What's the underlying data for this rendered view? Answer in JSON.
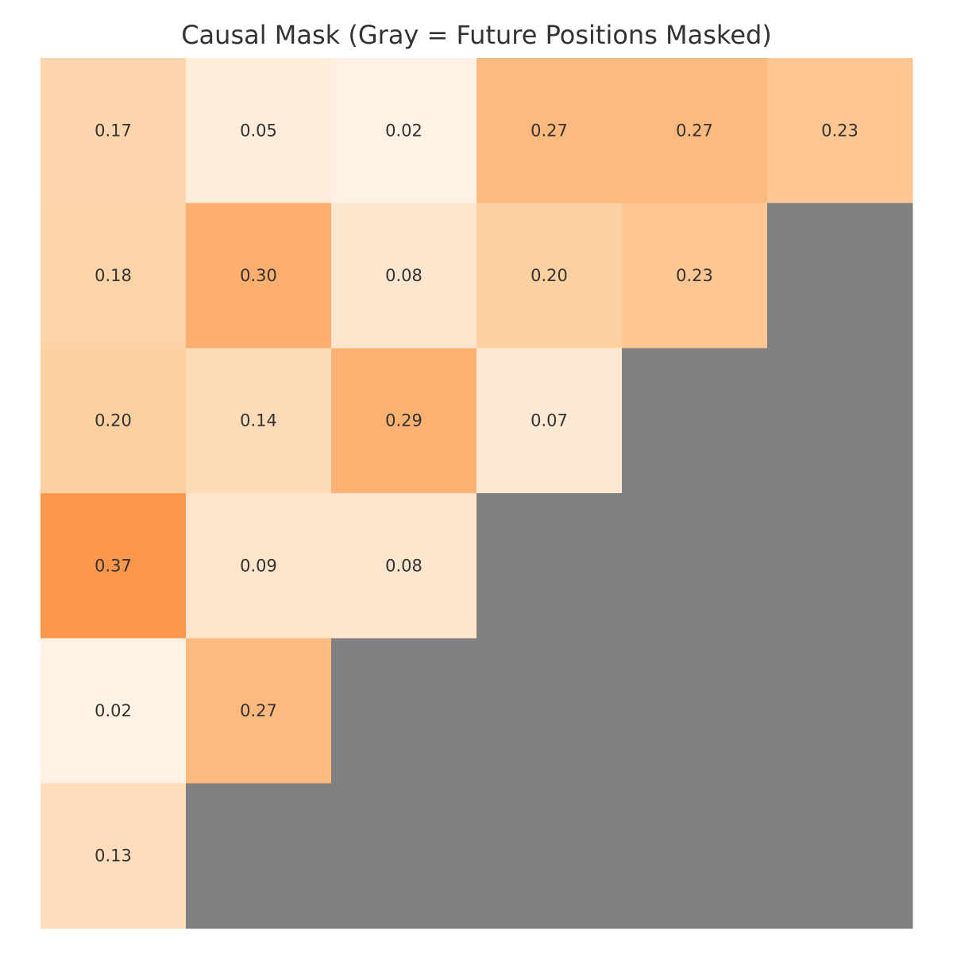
{
  "chart_data": {
    "type": "heatmap",
    "title": "Causal Mask (Gray = Future Positions Masked)",
    "xlabel": "",
    "ylabel": "",
    "rows": 6,
    "cols": 6,
    "values": [
      [
        0.17,
        0.05,
        0.02,
        0.27,
        0.27,
        0.23
      ],
      [
        0.18,
        0.3,
        0.08,
        0.2,
        0.23,
        null
      ],
      [
        0.2,
        0.14,
        0.29,
        0.07,
        null,
        null
      ],
      [
        0.37,
        0.09,
        0.08,
        null,
        null,
        null
      ],
      [
        0.02,
        0.27,
        null,
        null,
        null,
        null
      ],
      [
        0.13,
        null,
        null,
        null,
        null,
        null
      ]
    ],
    "value_range": [
      0.0,
      0.4
    ],
    "colormap": {
      "low": "#fff5eb",
      "mid": "#fdd0a2",
      "high": "#fd8d3c"
    },
    "masked_color": "#808080",
    "grid": false,
    "legend": "none"
  }
}
